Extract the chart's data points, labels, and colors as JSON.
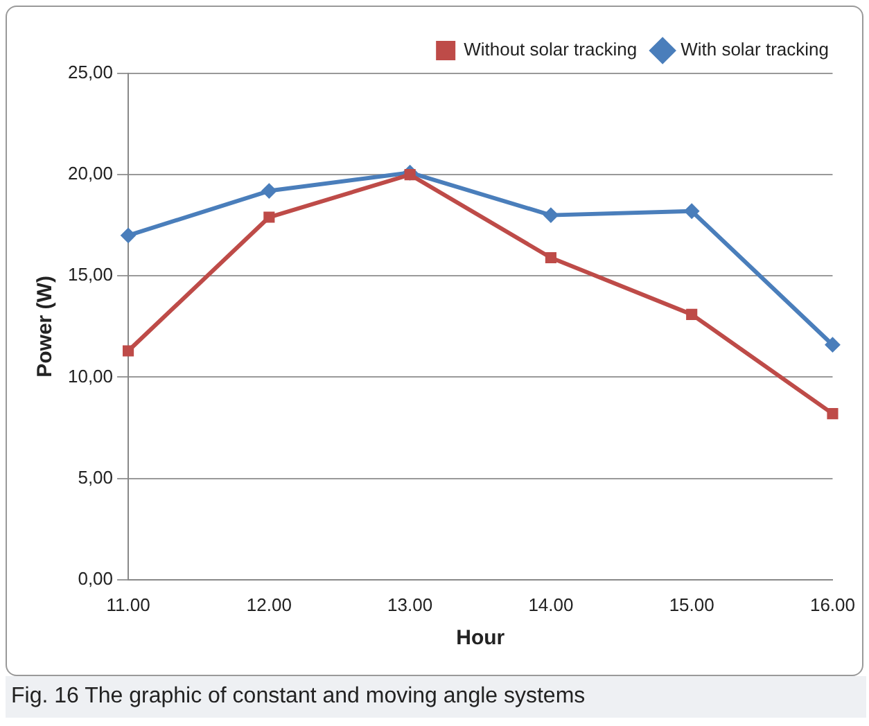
{
  "chart_data": {
    "type": "line",
    "xlabel": "Hour",
    "ylabel": "Power (W)",
    "categories": [
      "11.00",
      "12.00",
      "13.00",
      "14.00",
      "15.00",
      "16.00"
    ],
    "series": [
      {
        "name": "With solar tracking",
        "color": "#4a7ebb",
        "marker": "diamond",
        "values": [
          17.0,
          19.2,
          20.1,
          18.0,
          18.2,
          11.6
        ]
      },
      {
        "name": "Without solar tracking",
        "color": "#be4b48",
        "marker": "square",
        "values": [
          11.3,
          17.9,
          20.0,
          15.9,
          13.1,
          8.2
        ]
      }
    ],
    "ylim": [
      0,
      25
    ],
    "yticks": [
      {
        "value": 0,
        "label": "0,00"
      },
      {
        "value": 5,
        "label": "5,00"
      },
      {
        "value": 10,
        "label": "10,00"
      },
      {
        "value": 15,
        "label": "15,00"
      },
      {
        "value": 20,
        "label": "20,00"
      },
      {
        "value": 25,
        "label": "25,00"
      }
    ],
    "grid": "y",
    "legend": "top right",
    "line_style": "solid",
    "annotations": [
      "Fig. 16  The graphic of constant and moving angle systems"
    ]
  }
}
